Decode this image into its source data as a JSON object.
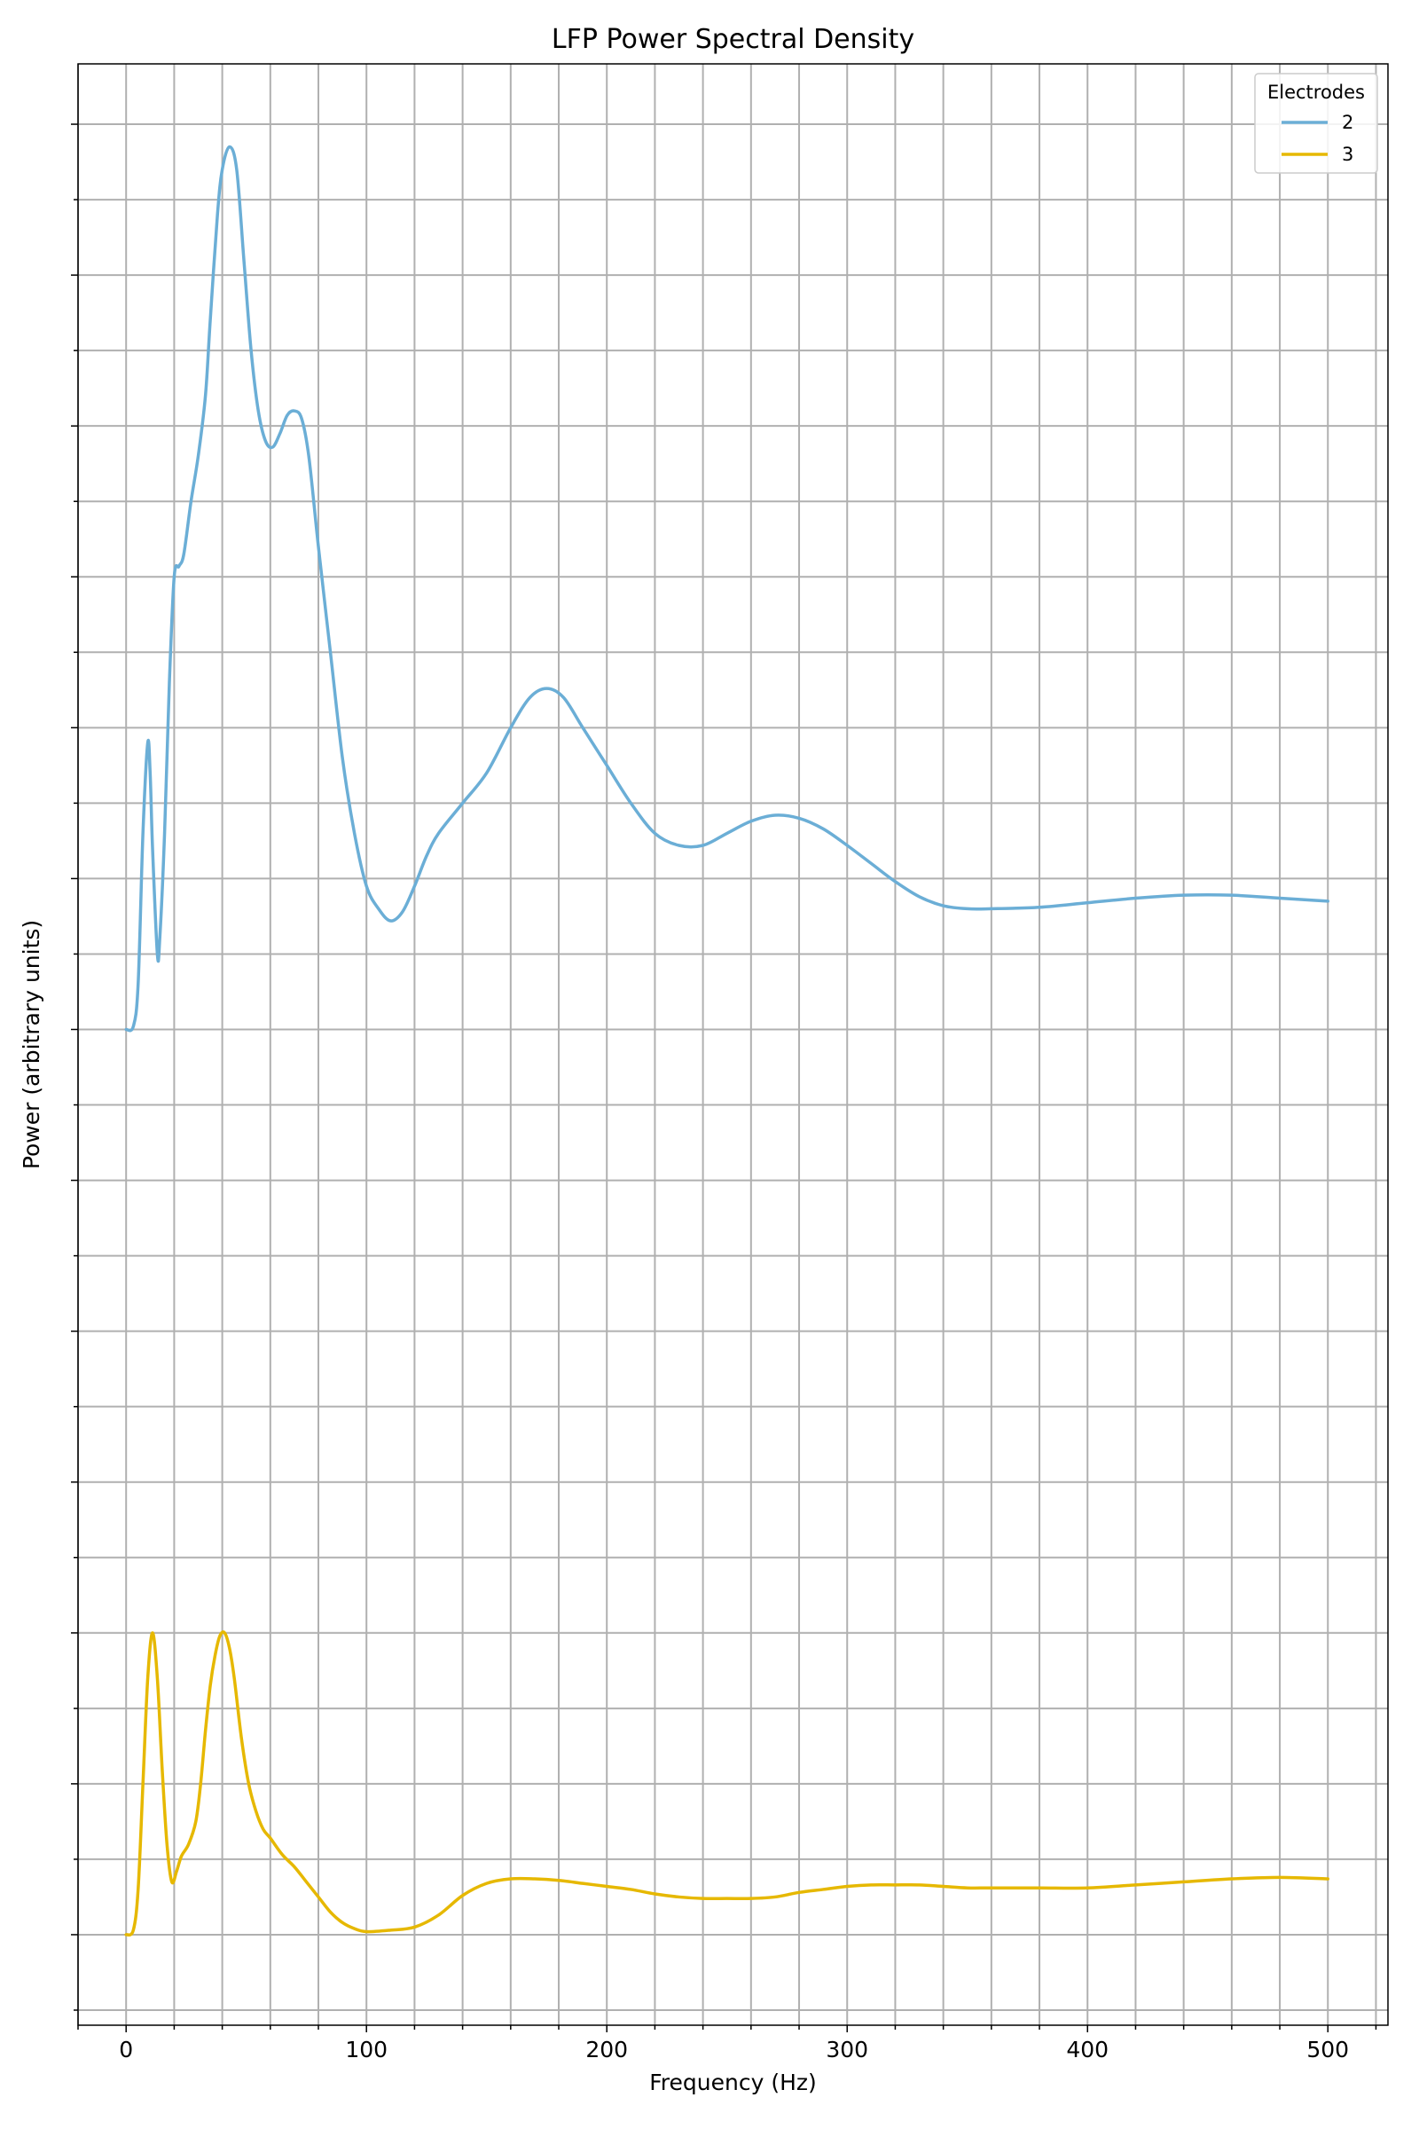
{
  "chart_data": {
    "type": "line",
    "title": "LFP Power Spectral Density",
    "xlabel": "Frequency (Hz)",
    "ylabel": "Power (arbitrary units)",
    "xlim": [
      -20,
      525
    ],
    "ylim": [
      -0.6,
      12.4
    ],
    "x_ticks": [
      0,
      100,
      200,
      300,
      400,
      500
    ],
    "x_tick_labels": [
      "0",
      "100",
      "200",
      "300",
      "400",
      "500"
    ],
    "grid": true,
    "y_tick_labels_shown": false,
    "legend": {
      "title": "Electrodes",
      "placement": "top-right"
    },
    "series": [
      {
        "name": "2",
        "color": "#6baed6",
        "offset": 6,
        "points": [
          [
            0,
            6.0
          ],
          [
            3,
            6.02
          ],
          [
            5,
            6.3
          ],
          [
            7,
            7.3
          ],
          [
            9,
            7.9
          ],
          [
            10,
            7.7
          ],
          [
            11,
            7.2
          ],
          [
            13,
            6.5
          ],
          [
            14,
            6.6
          ],
          [
            16,
            7.3
          ],
          [
            18,
            8.3
          ],
          [
            20,
            9.0
          ],
          [
            22,
            9.07
          ],
          [
            24,
            9.15
          ],
          [
            27,
            9.5
          ],
          [
            30,
            9.8
          ],
          [
            33,
            10.2
          ],
          [
            35,
            10.7
          ],
          [
            38,
            11.4
          ],
          [
            40,
            11.7
          ],
          [
            43,
            11.85
          ],
          [
            46,
            11.7
          ],
          [
            49,
            11.1
          ],
          [
            52,
            10.5
          ],
          [
            55,
            10.1
          ],
          [
            58,
            9.9
          ],
          [
            61,
            9.86
          ],
          [
            64,
            9.95
          ],
          [
            67,
            10.07
          ],
          [
            70,
            10.1
          ],
          [
            73,
            10.05
          ],
          [
            76,
            9.8
          ],
          [
            80,
            9.2
          ],
          [
            85,
            8.5
          ],
          [
            90,
            7.8
          ],
          [
            95,
            7.3
          ],
          [
            100,
            6.95
          ],
          [
            105,
            6.8
          ],
          [
            110,
            6.72
          ],
          [
            115,
            6.78
          ],
          [
            120,
            6.95
          ],
          [
            125,
            7.15
          ],
          [
            130,
            7.3
          ],
          [
            140,
            7.5
          ],
          [
            150,
            7.7
          ],
          [
            160,
            8.0
          ],
          [
            168,
            8.2
          ],
          [
            175,
            8.26
          ],
          [
            182,
            8.2
          ],
          [
            190,
            8.0
          ],
          [
            200,
            7.75
          ],
          [
            210,
            7.5
          ],
          [
            220,
            7.3
          ],
          [
            230,
            7.22
          ],
          [
            240,
            7.22
          ],
          [
            250,
            7.3
          ],
          [
            260,
            7.38
          ],
          [
            270,
            7.42
          ],
          [
            280,
            7.4
          ],
          [
            290,
            7.33
          ],
          [
            300,
            7.22
          ],
          [
            310,
            7.1
          ],
          [
            320,
            6.98
          ],
          [
            330,
            6.88
          ],
          [
            340,
            6.82
          ],
          [
            350,
            6.8
          ],
          [
            360,
            6.8
          ],
          [
            380,
            6.81
          ],
          [
            400,
            6.84
          ],
          [
            420,
            6.87
          ],
          [
            440,
            6.89
          ],
          [
            460,
            6.89
          ],
          [
            480,
            6.87
          ],
          [
            500,
            6.85
          ]
        ]
      },
      {
        "name": "3",
        "color": "#e6b800",
        "offset": 0,
        "points": [
          [
            0,
            0.0
          ],
          [
            3,
            0.03
          ],
          [
            5,
            0.3
          ],
          [
            7,
            1.0
          ],
          [
            9,
            1.7
          ],
          [
            11,
            2.0
          ],
          [
            13,
            1.7
          ],
          [
            15,
            1.1
          ],
          [
            17,
            0.6
          ],
          [
            19,
            0.35
          ],
          [
            21,
            0.42
          ],
          [
            23,
            0.52
          ],
          [
            26,
            0.6
          ],
          [
            29,
            0.75
          ],
          [
            31,
            1.0
          ],
          [
            33,
            1.35
          ],
          [
            35,
            1.65
          ],
          [
            37,
            1.85
          ],
          [
            39,
            1.98
          ],
          [
            41,
            2.0
          ],
          [
            43,
            1.9
          ],
          [
            45,
            1.7
          ],
          [
            48,
            1.3
          ],
          [
            51,
            1.0
          ],
          [
            54,
            0.82
          ],
          [
            57,
            0.7
          ],
          [
            60,
            0.64
          ],
          [
            65,
            0.53
          ],
          [
            70,
            0.45
          ],
          [
            75,
            0.35
          ],
          [
            80,
            0.25
          ],
          [
            85,
            0.15
          ],
          [
            90,
            0.08
          ],
          [
            95,
            0.04
          ],
          [
            100,
            0.02
          ],
          [
            110,
            0.03
          ],
          [
            120,
            0.05
          ],
          [
            130,
            0.13
          ],
          [
            140,
            0.26
          ],
          [
            150,
            0.34
          ],
          [
            160,
            0.37
          ],
          [
            170,
            0.37
          ],
          [
            180,
            0.36
          ],
          [
            190,
            0.34
          ],
          [
            200,
            0.32
          ],
          [
            210,
            0.3
          ],
          [
            220,
            0.27
          ],
          [
            230,
            0.25
          ],
          [
            240,
            0.24
          ],
          [
            250,
            0.24
          ],
          [
            260,
            0.24
          ],
          [
            270,
            0.25
          ],
          [
            280,
            0.28
          ],
          [
            290,
            0.3
          ],
          [
            300,
            0.32
          ],
          [
            310,
            0.33
          ],
          [
            320,
            0.33
          ],
          [
            330,
            0.33
          ],
          [
            340,
            0.32
          ],
          [
            350,
            0.31
          ],
          [
            360,
            0.31
          ],
          [
            380,
            0.31
          ],
          [
            400,
            0.31
          ],
          [
            420,
            0.33
          ],
          [
            440,
            0.35
          ],
          [
            460,
            0.37
          ],
          [
            480,
            0.38
          ],
          [
            500,
            0.37
          ]
        ]
      }
    ]
  }
}
